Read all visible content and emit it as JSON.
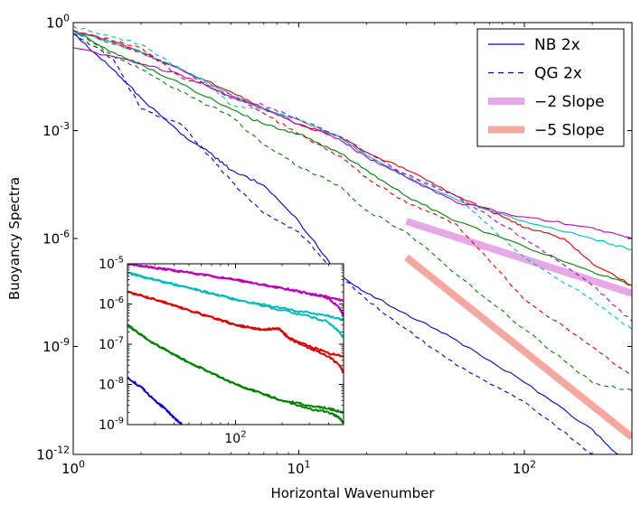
{
  "chart_data": [
    {
      "type": "line",
      "xscale": "log",
      "yscale": "log",
      "xlabel": "Horizontal Wavenumber",
      "ylabel": "Buoyancy Spectra",
      "xlim": [
        1,
        300
      ],
      "ylim": [
        1e-12,
        1
      ],
      "x_ticks": [
        {
          "value": 1,
          "base": "10",
          "exp": "0"
        },
        {
          "value": 10,
          "base": "10",
          "exp": "1"
        },
        {
          "value": 100,
          "base": "10",
          "exp": "2"
        }
      ],
      "y_ticks": [
        {
          "value": 1,
          "base": "10",
          "exp": "0"
        },
        {
          "value": 0.001,
          "base": "10",
          "exp": "-3"
        },
        {
          "value": 1e-06,
          "base": "10",
          "exp": "-6"
        },
        {
          "value": 1e-09,
          "base": "10",
          "exp": "-9"
        },
        {
          "value": 1e-12,
          "base": "10",
          "exp": "-12"
        }
      ],
      "legend": {
        "position": "top-right",
        "entries": [
          {
            "label": "NB 2x",
            "color": "#0000cc",
            "style": "solid"
          },
          {
            "label": "QG 2x",
            "color": "#0000cc",
            "style": "dashed"
          },
          {
            "label": "−2 Slope",
            "color": "#e6a8e6",
            "style": "thick"
          },
          {
            "label": "−5 Slope",
            "color": "#f4a8a0",
            "style": "thick"
          }
        ]
      },
      "series": [
        {
          "name": "blue-nb",
          "color": "#0000cc",
          "style": "solid",
          "x": [
            1,
            1.5,
            2,
            3,
            4,
            5,
            7,
            10,
            15,
            20,
            30,
            50,
            100,
            200,
            300
          ],
          "y": [
            0.5,
            0.05,
            0.008,
            0.0008,
            0.00025,
            8e-05,
            3e-05,
            3e-06,
            1e-07,
            3e-08,
            8e-09,
            1.5e-09,
            1e-10,
            5e-12,
            4e-13
          ]
        },
        {
          "name": "blue-qg",
          "color": "#0000cc",
          "style": "dashed",
          "x": [
            1,
            1.5,
            2,
            3,
            4,
            5,
            7,
            10,
            15,
            20,
            30,
            50,
            100,
            200
          ],
          "y": [
            0.5,
            0.1,
            0.004,
            0.0015,
            0.0002,
            4e-05,
            5e-06,
            1.5e-06,
            1e-07,
            2e-08,
            3e-09,
            3e-10,
            3e-11,
            1e-12
          ]
        },
        {
          "name": "green-nb",
          "color": "#008000",
          "style": "solid",
          "x": [
            1,
            1.5,
            2,
            3,
            5,
            7,
            10,
            15,
            20,
            30,
            50,
            100,
            200,
            300
          ],
          "y": [
            0.6,
            0.15,
            0.07,
            0.02,
            0.004,
            0.0015,
            0.0008,
            0.00025,
            8e-05,
            1.5e-05,
            3e-06,
            6e-07,
            1.2e-07,
            5e-08
          ]
        },
        {
          "name": "green-qg",
          "color": "#008000",
          "style": "dashed",
          "x": [
            1,
            1.5,
            2,
            3,
            5,
            7,
            10,
            15,
            20,
            30,
            50,
            100,
            200,
            300
          ],
          "y": [
            0.6,
            0.12,
            0.05,
            0.012,
            0.0025,
            0.0004,
            0.0001,
            3e-05,
            6e-06,
            1.5e-06,
            1e-07,
            3e-09,
            1e-10,
            6e-11
          ]
        },
        {
          "name": "red-nb",
          "color": "#dd0000",
          "style": "solid",
          "x": [
            1,
            1.5,
            2,
            3,
            5,
            7,
            10,
            15,
            20,
            30,
            50,
            80,
            100,
            150,
            200,
            300
          ],
          "y": [
            0.6,
            0.3,
            0.15,
            0.05,
            0.012,
            0.004,
            0.0015,
            0.0007,
            0.00025,
            8e-05,
            1.5e-05,
            4e-06,
            2e-06,
            1e-06,
            2e-07,
            5e-08
          ]
        },
        {
          "name": "red-qg",
          "color": "#dd0000",
          "style": "dashed",
          "x": [
            1,
            2,
            3,
            5,
            7,
            10,
            15,
            20,
            30,
            50,
            100,
            200,
            300
          ],
          "y": [
            0.6,
            0.2,
            0.03,
            0.01,
            0.003,
            0.0008,
            0.0002,
            5e-05,
            1e-05,
            2.5e-06,
            2e-08,
            1e-09,
            1.5e-10
          ]
        },
        {
          "name": "cyan-nb",
          "color": "#00bbbb",
          "style": "solid",
          "x": [
            1,
            2,
            3,
            5,
            7,
            10,
            15,
            20,
            30,
            50,
            100,
            200,
            300
          ],
          "y": [
            0.6,
            0.15,
            0.05,
            0.01,
            0.004,
            0.002,
            0.0007,
            0.0002,
            5e-05,
            1.2e-05,
            3e-06,
            1e-06,
            5e-07
          ]
        },
        {
          "name": "cyan-qg",
          "color": "#00bbbb",
          "style": "dashed",
          "x": [
            1,
            1.5,
            2,
            3,
            4,
            5,
            7,
            10,
            15,
            20,
            30,
            50,
            100,
            200,
            300
          ],
          "y": [
            0.8,
            0.4,
            0.25,
            0.05,
            0.02,
            0.005,
            0.004,
            0.002,
            0.0007,
            0.0002,
            6e-05,
            1.5e-05,
            3e-07,
            2e-08,
            3e-09
          ]
        },
        {
          "name": "magenta-nb",
          "color": "#bb00bb",
          "style": "solid",
          "x": [
            1,
            2,
            3,
            5,
            7,
            10,
            15,
            20,
            30,
            50,
            100,
            200,
            300
          ],
          "y": [
            0.2,
            0.07,
            0.035,
            0.009,
            0.004,
            0.0015,
            0.0006,
            0.00018,
            5e-05,
            1e-05,
            4e-06,
            2e-06,
            1e-06
          ]
        },
        {
          "name": "magenta-qg",
          "color": "#bb00bb",
          "style": "dashed",
          "x": [
            1,
            2,
            3,
            5,
            7,
            10,
            15,
            20,
            30,
            50,
            100,
            200,
            300
          ],
          "y": [
            0.6,
            0.15,
            0.05,
            0.008,
            0.005,
            0.002,
            0.0007,
            0.00025,
            6e-05,
            1.5e-05,
            1e-06,
            5e-08,
            5e-09
          ]
        }
      ],
      "reference_lines": [
        {
          "name": "minus-2-slope",
          "label": "−2 Slope",
          "color": "#e6a8e6",
          "x": [
            30,
            300
          ],
          "y": [
            3e-06,
            3e-08
          ]
        },
        {
          "name": "minus-5-slope",
          "label": "−5 Slope",
          "color": "#f4a8a0",
          "x": [
            30,
            300
          ],
          "y": [
            3e-07,
            3e-12
          ]
        }
      ]
    },
    {
      "type": "line",
      "role": "inset",
      "xscale": "log",
      "yscale": "log",
      "xlim": [
        20,
        500
      ],
      "ylim": [
        1e-09,
        1e-05
      ],
      "x_ticks": [
        {
          "value": 100,
          "base": "10",
          "exp": "2"
        }
      ],
      "y_ticks": [
        {
          "value": 1e-05,
          "base": "10",
          "exp": "-5"
        },
        {
          "value": 1e-06,
          "base": "10",
          "exp": "-6"
        },
        {
          "value": 1e-07,
          "base": "10",
          "exp": "-7"
        },
        {
          "value": 1e-08,
          "base": "10",
          "exp": "-8"
        },
        {
          "value": 1e-09,
          "base": "10",
          "exp": "-9"
        }
      ],
      "series": [
        {
          "name": "inset-magenta-a",
          "color": "#bb00bb",
          "x": [
            20,
            30,
            50,
            100,
            200,
            300,
            400,
            500
          ],
          "y": [
            1e-05,
            8e-06,
            6e-06,
            4e-06,
            2.5e-06,
            1.8e-06,
            1.5e-06,
            1.2e-06
          ]
        },
        {
          "name": "inset-magenta-b",
          "color": "#bb00bb",
          "x": [
            20,
            30,
            50,
            100,
            200,
            300,
            400,
            470,
            500
          ],
          "y": [
            1e-05,
            8e-06,
            6e-06,
            4e-06,
            2.5e-06,
            1.8e-06,
            1.4e-06,
            8e-07,
            5e-07
          ]
        },
        {
          "name": "inset-cyan-a",
          "color": "#00bbbb",
          "x": [
            20,
            30,
            50,
            100,
            200,
            300,
            400,
            500
          ],
          "y": [
            6e-06,
            4e-06,
            2.5e-06,
            1.3e-06,
            8e-07,
            6e-07,
            5e-07,
            4e-07
          ]
        },
        {
          "name": "inset-cyan-b",
          "color": "#00bbbb",
          "x": [
            20,
            30,
            50,
            100,
            200,
            300,
            400,
            470,
            500
          ],
          "y": [
            6e-06,
            4e-06,
            2.5e-06,
            1.3e-06,
            7e-07,
            5e-07,
            3.5e-07,
            2e-07,
            1.5e-07
          ]
        },
        {
          "name": "inset-red-a",
          "color": "#dd0000",
          "x": [
            20,
            30,
            50,
            100,
            150,
            190,
            220,
            300,
            400,
            500
          ],
          "y": [
            2e-06,
            1.3e-06,
            7e-07,
            3e-07,
            2.3e-07,
            2.5e-07,
            1.5e-07,
            9e-08,
            6e-08,
            5e-08
          ]
        },
        {
          "name": "inset-red-b",
          "color": "#dd0000",
          "x": [
            20,
            30,
            50,
            100,
            150,
            190,
            220,
            300,
            400,
            470,
            500
          ],
          "y": [
            2e-06,
            1.3e-06,
            7e-07,
            3e-07,
            2.3e-07,
            2.5e-07,
            1.4e-07,
            8e-08,
            5e-08,
            3e-08,
            2e-08
          ]
        },
        {
          "name": "inset-green-a",
          "color": "#008000",
          "x": [
            20,
            30,
            50,
            100,
            200,
            300,
            400,
            500
          ],
          "y": [
            3e-07,
            1e-07,
            3.5e-08,
            1e-08,
            4e-09,
            3e-09,
            2.5e-09,
            2e-09
          ]
        },
        {
          "name": "inset-green-b",
          "color": "#008000",
          "x": [
            20,
            30,
            50,
            100,
            200,
            300,
            400,
            470,
            500
          ],
          "y": [
            3e-07,
            1e-07,
            3.5e-08,
            1e-08,
            4e-09,
            2.5e-09,
            2e-09,
            1.5e-09,
            1.1e-09
          ]
        },
        {
          "name": "inset-blue",
          "color": "#0000cc",
          "x": [
            20,
            25,
            30,
            35,
            40,
            45
          ],
          "y": [
            1.5e-08,
            8e-09,
            4e-09,
            2.5e-09,
            1.5e-09,
            1e-09
          ]
        }
      ]
    }
  ]
}
